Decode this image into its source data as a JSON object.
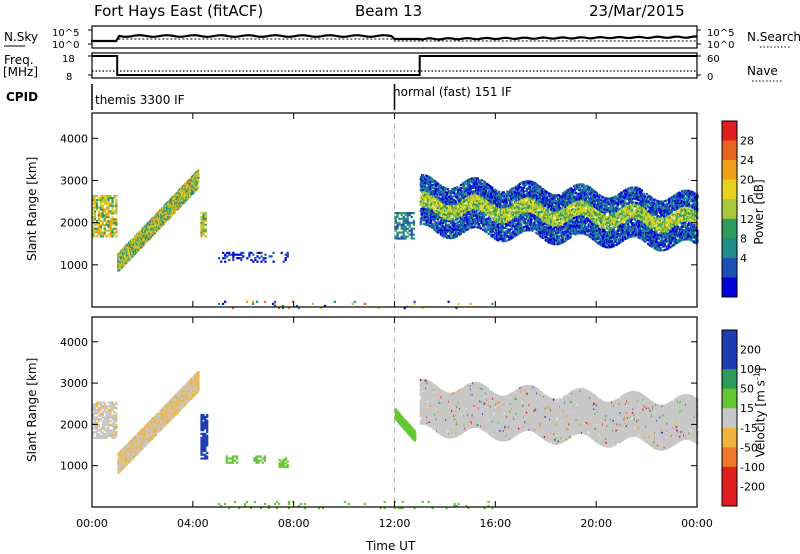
{
  "header": {
    "station": "Fort Hays East (fitACF)",
    "beam": "Beam 13",
    "date": "23/Mar/2015"
  },
  "panels": {
    "nsky_label": "N.Sky",
    "nsearch_label": "N.Search",
    "freq_label_1": "Freq.",
    "freq_label_2": "[MHz]",
    "nave_label": "Nave",
    "cpid_label": "CPID",
    "nsky_ticks": [
      "10^5",
      "10^0"
    ],
    "nsearch_ticks": [
      "10^5",
      "10^0"
    ],
    "freq_ticks": [
      "18",
      "8"
    ],
    "nave_ticks": [
      "60",
      "0"
    ],
    "cpid_segments": [
      {
        "start_hr": 0,
        "label": "themis 3300 IF"
      },
      {
        "start_hr": 12,
        "label": "normal (fast) 151 IF"
      }
    ]
  },
  "colorbars": {
    "power_label": "Power [dB]",
    "power_ticks": [
      "28",
      "24",
      "20",
      "16",
      "12",
      "8",
      "4"
    ],
    "velocity_label": "Velocity [m s",
    "velocity_label_sup": "-1",
    "velocity_label_end": "]",
    "velocity_ticks": [
      "200",
      "100",
      "50",
      "15",
      "-15",
      "-50",
      "-100",
      "-200"
    ]
  },
  "chart_data": [
    {
      "type": "heatmap",
      "name": "Power",
      "ylabel": "Slant Range [km]",
      "x_range_hr": [
        0,
        24
      ],
      "ylim": [
        0,
        4600
      ],
      "yticks": [
        1000,
        2000,
        3000,
        4000
      ],
      "ytick_labels": [
        "1000",
        "2000",
        "3000",
        "4000"
      ],
      "bands": [
        {
          "t0": 0.0,
          "t1": 1.0,
          "r0": 1800,
          "r1": 2700,
          "value": "16-24 dB"
        },
        {
          "t0": 1.0,
          "t1": 4.2,
          "r0": 1000,
          "r1": 3300,
          "value": "12-24 dB"
        },
        {
          "t0": 4.3,
          "t1": 4.6,
          "r0": 1700,
          "r1": 2300,
          "value": "16-20 dB"
        },
        {
          "t0": 12.0,
          "t1": 12.8,
          "r0": 1600,
          "r1": 2200,
          "value": "8-12 dB"
        },
        {
          "t0": 13.0,
          "t1": 24.0,
          "r0": 1500,
          "r1": 3100,
          "value": "4-20 dB"
        }
      ]
    },
    {
      "type": "heatmap",
      "name": "Velocity",
      "ylabel": "Slant Range [km]",
      "xlabel": "Time UT",
      "x_range_hr": [
        0,
        24
      ],
      "ylim": [
        0,
        4600
      ],
      "yticks": [
        1000,
        2000,
        3000,
        4000
      ],
      "ytick_labels": [
        "1000",
        "2000",
        "3000",
        "4000"
      ],
      "xticks": [
        "00:00",
        "04:00",
        "08:00",
        "12:00",
        "16:00",
        "20:00",
        "00:00"
      ],
      "bands": [
        {
          "t0": 0.0,
          "t1": 1.0,
          "r0": 1700,
          "r1": 2600,
          "value": "-15 to 15 m/s"
        },
        {
          "t0": 1.0,
          "t1": 4.2,
          "r0": 900,
          "r1": 3400,
          "value": "-50 to 15 m/s"
        },
        {
          "t0": 4.3,
          "t1": 4.6,
          "r0": 1200,
          "r1": 2300,
          "value": "200 m/s"
        },
        {
          "t0": 5.0,
          "t1": 7.8,
          "r0": 1000,
          "r1": 1300,
          "value": "15-50 m/s"
        },
        {
          "t0": 12.0,
          "t1": 12.8,
          "r0": 1600,
          "r1": 2400,
          "value": "15-50 m/s"
        },
        {
          "t0": 13.0,
          "t1": 24.0,
          "r0": 1400,
          "r1": 3100,
          "value": "-15 to 15 m/s"
        }
      ]
    }
  ]
}
